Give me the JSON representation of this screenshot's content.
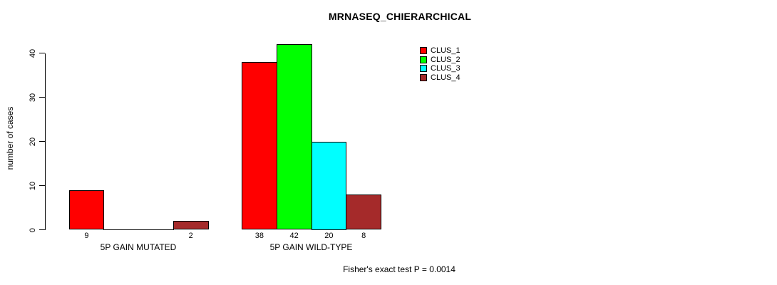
{
  "title": "MRNASEQ_CHIERARCHICAL",
  "y_axis": {
    "label": "number of cases",
    "ticks": [
      0,
      10,
      20,
      30,
      40
    ]
  },
  "legend": {
    "items": [
      {
        "label": "CLUS_1",
        "color": "#FF0000"
      },
      {
        "label": "CLUS_2",
        "color": "#00FF00"
      },
      {
        "label": "CLUS_3",
        "color": "#00FFFF"
      },
      {
        "label": "CLUS_4",
        "color": "#A52A2A"
      }
    ]
  },
  "footer": {
    "text": "Fisher's exact test P = 0.0014"
  },
  "chart_data": {
    "type": "bar",
    "title": "MRNASEQ_CHIERARCHICAL",
    "categories": [
      "5P GAIN MUTATED",
      "5P GAIN WILD-TYPE"
    ],
    "series": [
      {
        "name": "CLUS_1",
        "color": "#FF0000",
        "values": [
          9,
          38
        ]
      },
      {
        "name": "CLUS_2",
        "color": "#00FF00",
        "values": [
          0,
          42
        ]
      },
      {
        "name": "CLUS_3",
        "color": "#00FFFF",
        "values": [
          0,
          20
        ]
      },
      {
        "name": "CLUS_4",
        "color": "#A52A2A",
        "values": [
          2,
          8
        ]
      }
    ],
    "xlabel": "",
    "ylabel": "number of cases",
    "ylim": [
      0,
      40
    ],
    "yticks": [
      0,
      10,
      20,
      30,
      40
    ],
    "grid": false,
    "legend_position": "top-right",
    "bar_value_labels": true,
    "zero_height_bars_drawn_as_baseline_segments": true,
    "annotation": "Fisher's exact test P = 0.0014"
  }
}
